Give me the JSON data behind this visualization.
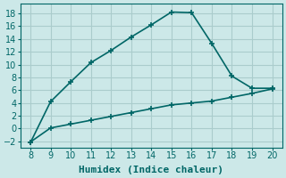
{
  "background_color": "#cce8e8",
  "grid_color": "#aacccc",
  "line_color": "#006666",
  "marker_style": "+",
  "marker_size": 5,
  "line_width": 1.2,
  "xlabel": "Humidex (Indice chaleur)",
  "xlabel_fontsize": 8,
  "tick_fontsize": 7,
  "xlim": [
    7.5,
    20.5
  ],
  "ylim": [
    -3.0,
    19.5
  ],
  "xticks": [
    8,
    9,
    10,
    11,
    12,
    13,
    14,
    15,
    16,
    17,
    18,
    19,
    20
  ],
  "yticks": [
    -2,
    0,
    2,
    4,
    6,
    8,
    10,
    12,
    14,
    16,
    18
  ],
  "curve1_x": [
    8,
    9,
    10,
    11,
    12,
    13,
    14,
    15,
    16,
    17,
    18,
    19,
    20
  ],
  "curve1_y": [
    -2.2,
    4.2,
    7.3,
    10.3,
    12.2,
    14.3,
    16.2,
    18.2,
    18.1,
    13.3,
    8.2,
    6.3,
    6.3
  ],
  "curve2_x": [
    8,
    9,
    10,
    11,
    12,
    13,
    14,
    15,
    16,
    17,
    18,
    19,
    20
  ],
  "curve2_y": [
    -2.1,
    0.1,
    0.7,
    1.3,
    1.9,
    2.5,
    3.1,
    3.7,
    4.0,
    4.3,
    4.9,
    5.5,
    6.2
  ]
}
